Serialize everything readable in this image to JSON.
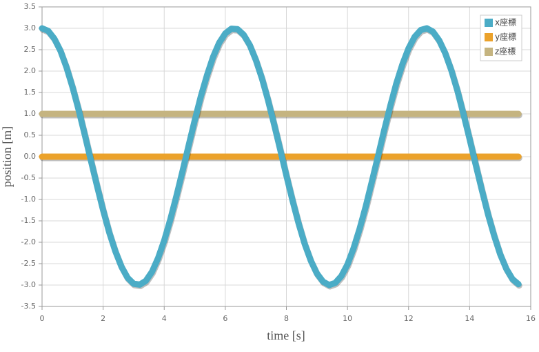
{
  "chart_data": {
    "type": "line",
    "x_label": "time [s]",
    "y_label": "position [m]",
    "x": [
      0,
      0.2,
      0.4,
      0.6,
      0.8,
      1.0,
      1.2,
      1.4,
      1.6,
      1.8,
      2.0,
      2.2,
      2.4,
      2.6,
      2.8,
      3.0,
      3.2,
      3.4,
      3.6,
      3.8,
      4.0,
      4.2,
      4.4,
      4.6,
      4.8,
      5.0,
      5.2,
      5.4,
      5.6,
      5.8,
      6.0,
      6.2,
      6.4,
      6.6,
      6.8,
      7.0,
      7.2,
      7.4,
      7.6,
      7.8,
      8.0,
      8.2,
      8.4,
      8.6,
      8.8,
      9.0,
      9.2,
      9.4,
      9.6,
      9.8,
      10.0,
      10.2,
      10.4,
      10.6,
      10.8,
      11.0,
      11.2,
      11.4,
      11.6,
      11.8,
      12.0,
      12.2,
      12.4,
      12.6,
      12.8,
      13.0,
      13.2,
      13.4,
      13.6,
      13.8,
      14.0,
      14.2,
      14.4,
      14.6,
      14.8,
      15.0,
      15.2,
      15.4,
      15.6
    ],
    "series": [
      {
        "name": "x座標",
        "color": "#4bacc6",
        "values": [
          3,
          2.94,
          2.76,
          2.48,
          2.09,
          1.62,
          1.09,
          0.51,
          -0.09,
          -0.68,
          -1.25,
          -1.77,
          -2.21,
          -2.57,
          -2.83,
          -2.97,
          -2.99,
          -2.9,
          -2.69,
          -2.37,
          -1.96,
          -1.47,
          -0.92,
          -0.34,
          0.26,
          0.85,
          1.41,
          1.9,
          2.33,
          2.66,
          2.88,
          2.99,
          2.98,
          2.85,
          2.61,
          2.26,
          1.83,
          1.32,
          0.75,
          0.16,
          -0.44,
          -1.02,
          -1.56,
          -2.04,
          -2.43,
          -2.73,
          -2.92,
          -3.0,
          -2.95,
          -2.79,
          -2.52,
          -2.14,
          -1.68,
          -1.16,
          -0.58,
          0.01,
          0.61,
          1.18,
          1.71,
          2.16,
          2.53,
          2.8,
          2.96,
          3.0,
          2.92,
          2.72,
          2.42,
          2.02,
          1.54,
          0.99,
          0.41,
          -0.19,
          -0.78,
          -1.34,
          -1.84,
          -2.28,
          -2.62,
          -2.86,
          -2.98
        ]
      },
      {
        "name": "y座標",
        "color": "#eba22b",
        "values": [
          0,
          0,
          0,
          0,
          0,
          0,
          0,
          0,
          0,
          0,
          0,
          0,
          0,
          0,
          0,
          0,
          0,
          0,
          0,
          0,
          0,
          0,
          0,
          0,
          0,
          0,
          0,
          0,
          0,
          0,
          0,
          0,
          0,
          0,
          0,
          0,
          0,
          0,
          0,
          0,
          0,
          0,
          0,
          0,
          0,
          0,
          0,
          0,
          0,
          0,
          0,
          0,
          0,
          0,
          0,
          0,
          0,
          0,
          0,
          0,
          0,
          0,
          0,
          0,
          0,
          0,
          0,
          0,
          0,
          0,
          0,
          0,
          0,
          0,
          0,
          0,
          0,
          0,
          0
        ]
      },
      {
        "name": "z座標",
        "color": "#c5b480",
        "values": [
          1,
          1,
          1,
          1,
          1,
          1,
          1,
          1,
          1,
          1,
          1,
          1,
          1,
          1,
          1,
          1,
          1,
          1,
          1,
          1,
          1,
          1,
          1,
          1,
          1,
          1,
          1,
          1,
          1,
          1,
          1,
          1,
          1,
          1,
          1,
          1,
          1,
          1,
          1,
          1,
          1,
          1,
          1,
          1,
          1,
          1,
          1,
          1,
          1,
          1,
          1,
          1,
          1,
          1,
          1,
          1,
          1,
          1,
          1,
          1,
          1,
          1,
          1,
          1,
          1,
          1,
          1,
          1,
          1,
          1,
          1,
          1,
          1,
          1,
          1,
          1,
          1,
          1,
          1
        ]
      }
    ],
    "xlim": [
      0,
      16
    ],
    "xticks": [
      0,
      2,
      4,
      6,
      8,
      10,
      12,
      14,
      16
    ],
    "ylim": [
      -3.5,
      3.5
    ],
    "yticks": [
      -3.5,
      {
        "value": -3,
        "label": "-3.0"
      },
      -2.5,
      {
        "value": -2,
        "label": "-2.0"
      },
      -1.5,
      {
        "value": -1,
        "label": "-1.0"
      },
      -0.5,
      {
        "value": 0,
        "label": "0.0"
      },
      0.5,
      {
        "value": 1,
        "label": "1.0"
      },
      1.5,
      {
        "value": 2,
        "label": "2.0"
      },
      2.5,
      {
        "value": 3,
        "label": "3.0"
      },
      3.5
    ],
    "grid": true,
    "legend": "upper right"
  }
}
